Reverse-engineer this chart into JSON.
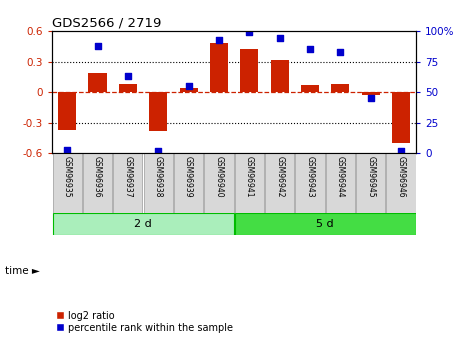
{
  "title": "GDS2566 / 2719",
  "samples": [
    "GSM96935",
    "GSM96936",
    "GSM96937",
    "GSM96938",
    "GSM96939",
    "GSM96940",
    "GSM96941",
    "GSM96942",
    "GSM96943",
    "GSM96944",
    "GSM96945",
    "GSM96946"
  ],
  "log2_ratio": [
    -0.37,
    0.19,
    0.08,
    -0.38,
    0.04,
    0.48,
    0.42,
    0.32,
    0.07,
    0.08,
    -0.03,
    -0.5
  ],
  "percentile_rank": [
    3,
    88,
    63,
    2,
    55,
    93,
    99,
    94,
    85,
    83,
    45,
    2
  ],
  "groups": [
    {
      "label": "2 d",
      "start": 0,
      "end": 6,
      "color": "#90EE90"
    },
    {
      "label": "5 d",
      "start": 6,
      "end": 12,
      "color": "#32CD32"
    }
  ],
  "bar_color": "#CC2200",
  "dot_color": "#0000CC",
  "ylim_left": [
    -0.6,
    0.6
  ],
  "ylim_right": [
    0,
    100
  ],
  "yticks_left": [
    -0.6,
    -0.3,
    0.0,
    0.3,
    0.6
  ],
  "yticks_right": [
    0,
    25,
    50,
    75,
    100
  ],
  "ytick_labels_left": [
    "-0.6",
    "-0.3",
    "0",
    "0.3",
    "0.6"
  ],
  "ytick_labels_right": [
    "0",
    "25",
    "50",
    "75",
    "100%"
  ],
  "hlines_dotted": [
    -0.3,
    0.3
  ],
  "hline_zero_color": "#CC2200",
  "time_label": "time ►",
  "legend_bar_label": "log2 ratio",
  "legend_dot_label": "percentile rank within the sample",
  "bg_color": "#FFFFFF",
  "plot_bg_color": "#FFFFFF",
  "left_tick_color": "#CC2200",
  "right_tick_color": "#0000CC",
  "sample_box_color": "#D8D8D8",
  "sample_box_edge": "#999999",
  "group1_color": "#AAEEBB",
  "group2_color": "#44DD44"
}
